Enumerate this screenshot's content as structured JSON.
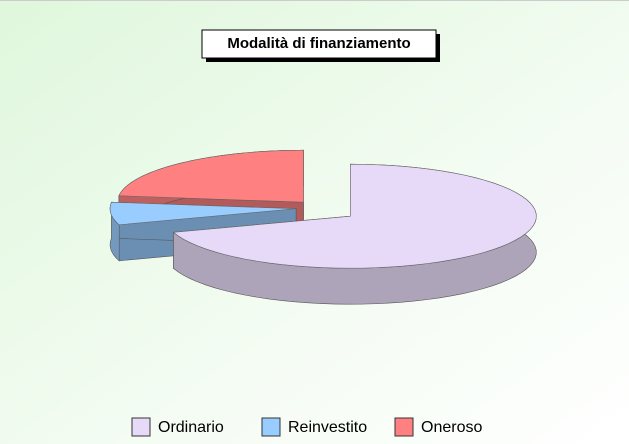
{
  "chart_data": {
    "type": "pie",
    "title": "Modalità di finanziamento",
    "categories": [
      "Ordinario",
      "Reinvestito",
      "Oneroso"
    ],
    "values": [
      70,
      7,
      23
    ],
    "colors": [
      "#e6daf8",
      "#99ccff",
      "#ff8080"
    ],
    "legend": "bottom"
  }
}
